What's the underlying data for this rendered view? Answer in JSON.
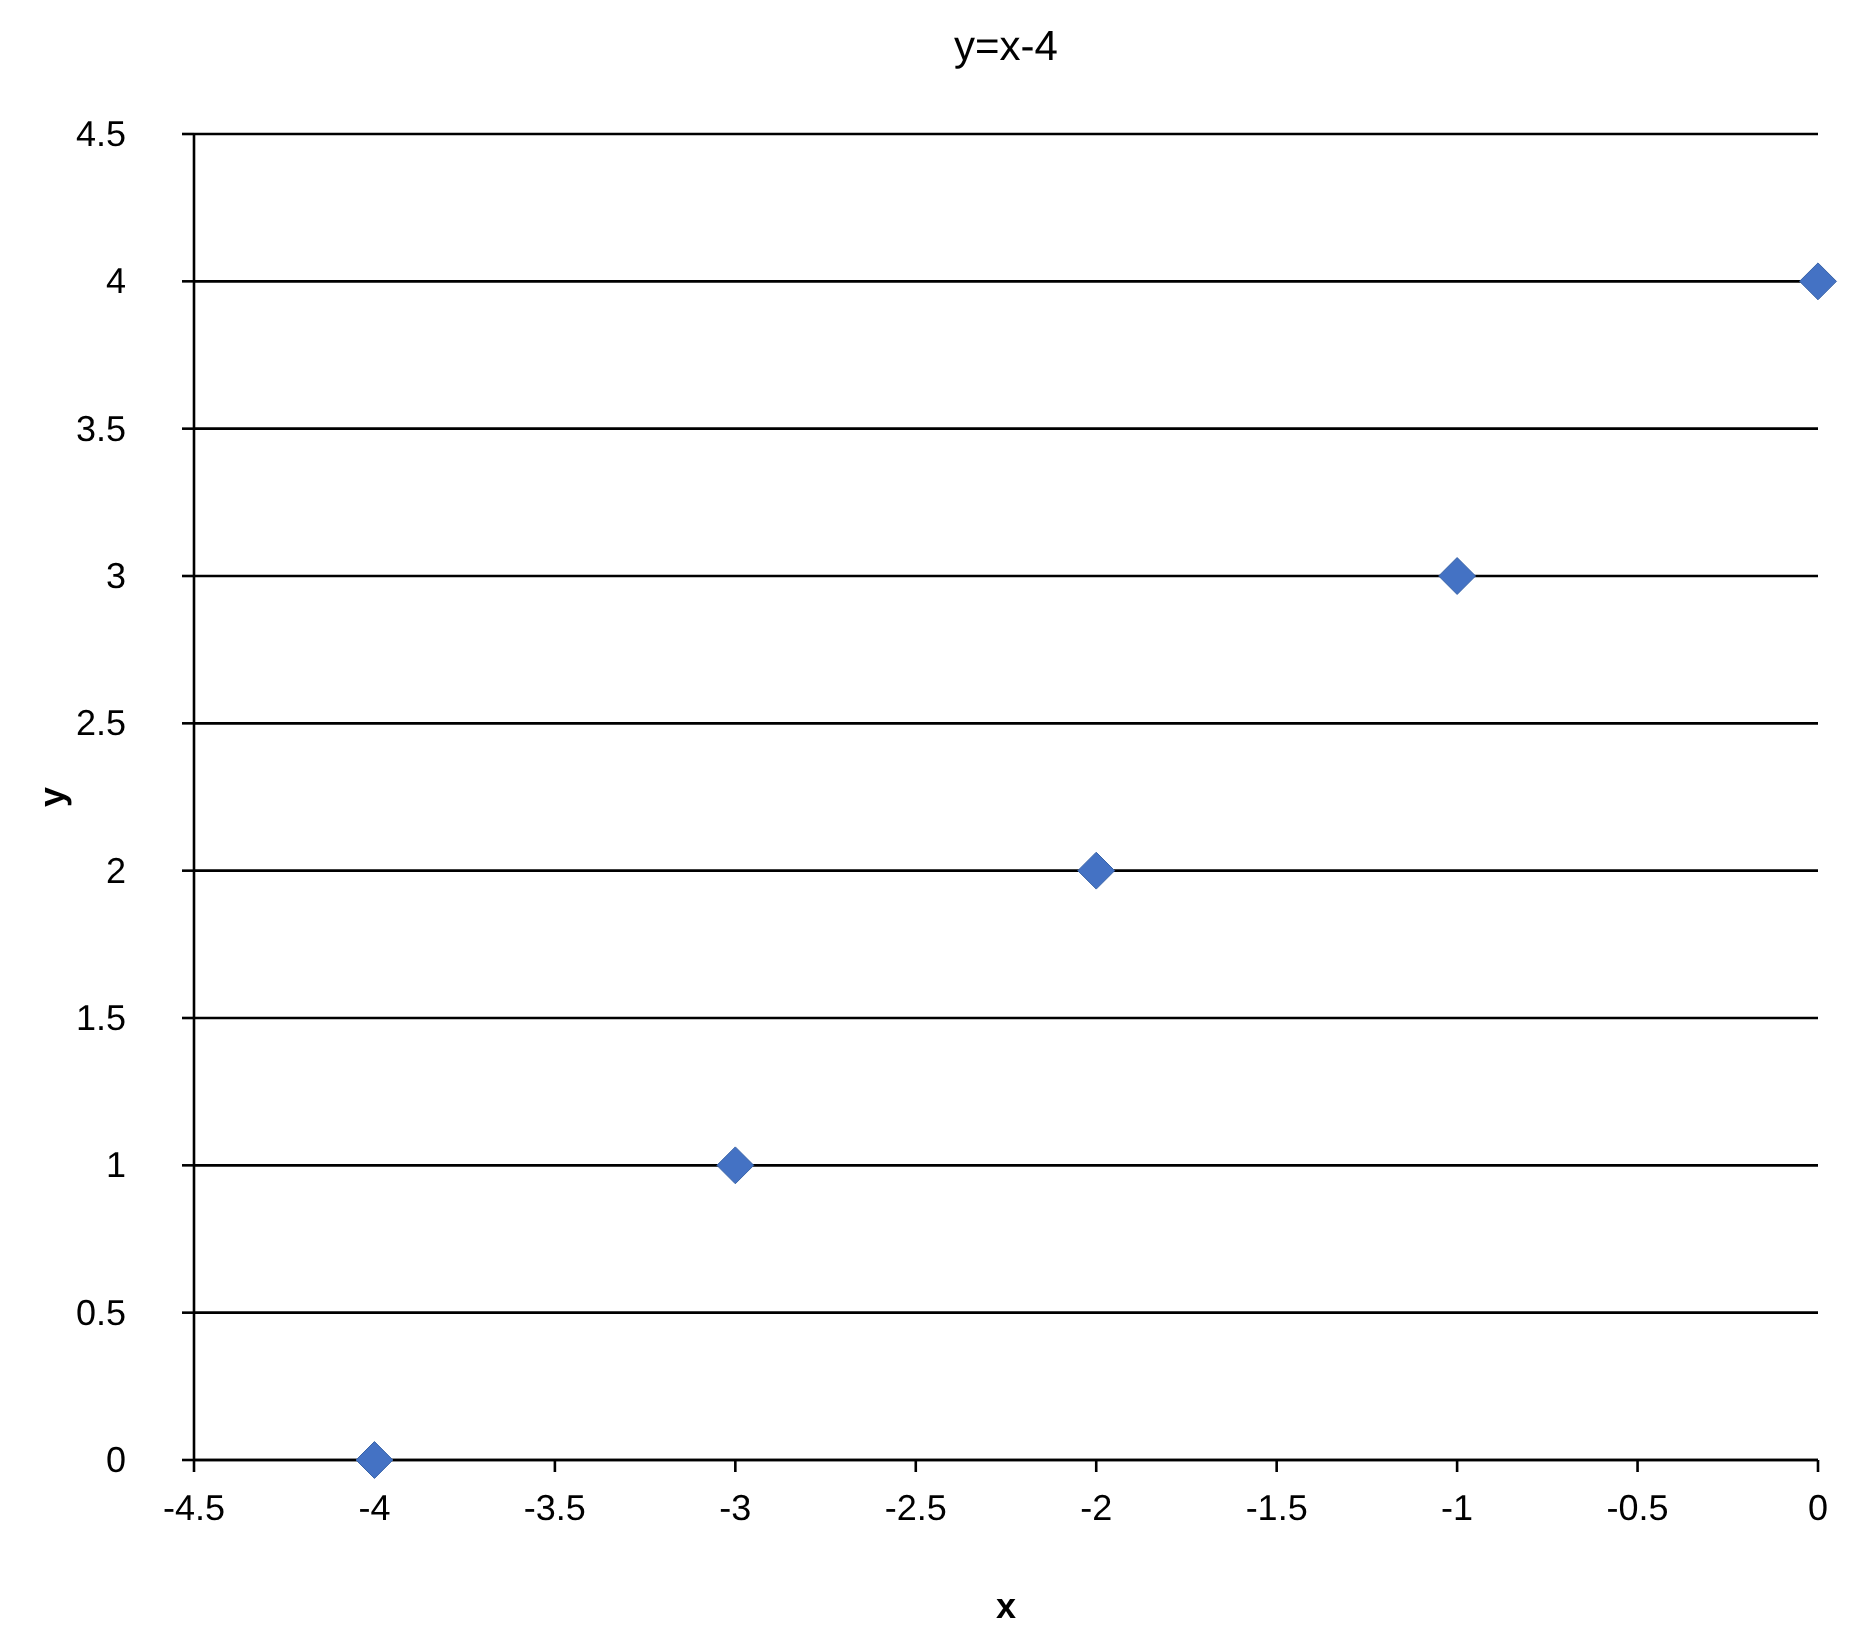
{
  "chart_data": {
    "type": "scatter",
    "title": "y=x-4",
    "xlabel": "x",
    "ylabel": "y",
    "x": [
      -4,
      -3,
      -2,
      -1,
      0
    ],
    "series": [
      {
        "color": "#4472c4",
        "values": [
          0,
          1,
          2,
          3,
          4
        ]
      }
    ],
    "xlim": [
      -4.5,
      0
    ],
    "xticks": [
      -4.5,
      -4,
      -3.5,
      -3,
      -2.5,
      -2,
      -1.5,
      -1,
      -0.5,
      0
    ],
    "ylim": [
      0,
      4.5
    ],
    "yticks": [
      0,
      0.5,
      1,
      1.5,
      2,
      2.5,
      3,
      3.5,
      4,
      4.5
    ],
    "grid": "y",
    "marker": "diamond"
  }
}
